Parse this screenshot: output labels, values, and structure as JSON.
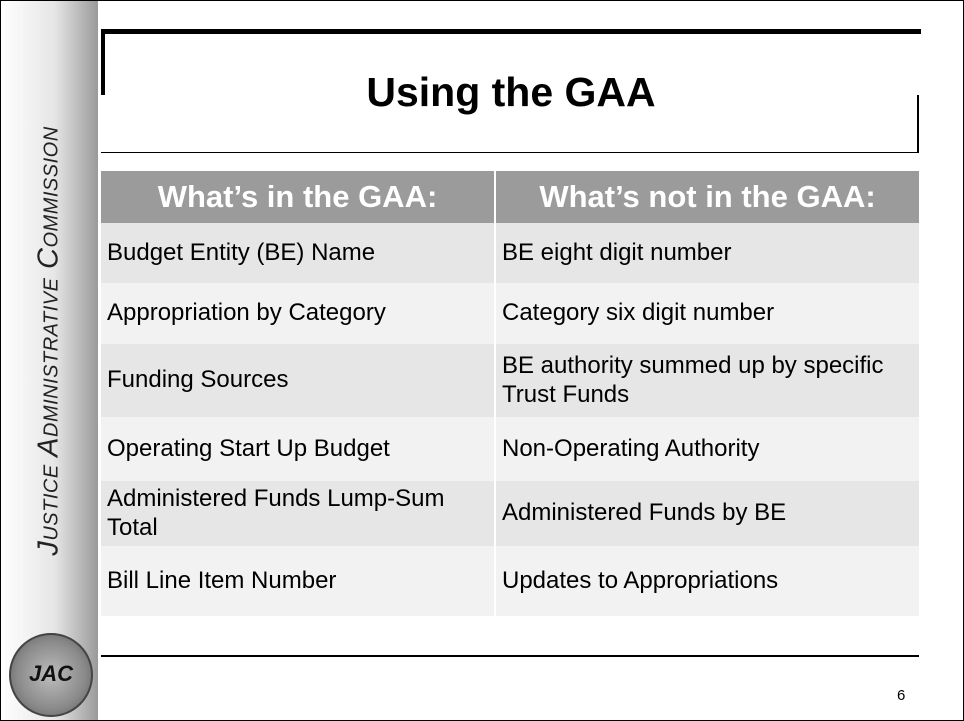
{
  "sidebar": {
    "text": "Justice Administrative Commission",
    "seal": "JAC"
  },
  "title": "Using the GAA",
  "table": {
    "header": [
      "What’s in the GAA:",
      "What’s not in the GAA:"
    ],
    "rows": [
      [
        "Budget Entity (BE) Name",
        "BE eight digit number"
      ],
      [
        "Appropriation by Category",
        "Category six digit number"
      ],
      [
        "Funding Sources",
        "BE authority summed up by specific Trust Funds"
      ],
      [
        "Operating Start Up Budget",
        "Non-Operating Authority"
      ],
      [
        "Administered Funds Lump-Sum Total",
        "Administered Funds by BE"
      ],
      [
        "Bill Line Item Number",
        "Updates to Appropriations"
      ]
    ]
  },
  "page_number": "6"
}
